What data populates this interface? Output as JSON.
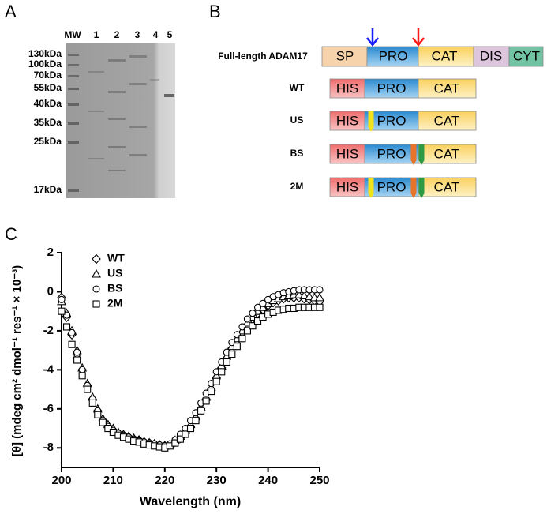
{
  "panel_a": {
    "label": "A",
    "lanes": [
      "MW",
      "1",
      "2",
      "3",
      "4",
      "5"
    ],
    "markers": [
      "130kDa",
      "100kDa",
      "70kDa",
      "55kDa",
      "40kDa",
      "35kDa",
      "25kDa",
      "17kDa"
    ]
  },
  "panel_b": {
    "label": "B",
    "constructs": [
      {
        "name": "Full-length ADAM17",
        "domains": [
          "SP",
          "PRO",
          "CAT",
          "DIS",
          "CYT"
        ]
      },
      {
        "name": "WT",
        "domains": [
          "HIS",
          "PRO",
          "CAT"
        ]
      },
      {
        "name": "US",
        "domains": [
          "HIS",
          "PRO",
          "CAT"
        ]
      },
      {
        "name": "BS",
        "domains": [
          "HIS",
          "PRO",
          "CAT"
        ]
      },
      {
        "name": "2M",
        "domains": [
          "HIS",
          "PRO",
          "CAT"
        ]
      }
    ]
  },
  "chart_data": {
    "type": "scatter",
    "panel_label": "C",
    "x_label": "Wavelength (nm)",
    "y_label": "[θ] (mdeg cm² dmol⁻¹ res⁻¹ × 10⁻³)",
    "xlim": [
      200,
      250
    ],
    "xticks": [
      200,
      210,
      220,
      230,
      240,
      250
    ],
    "ylim": [
      -9,
      2
    ],
    "yticks": [
      2,
      0,
      -2,
      -4,
      -6,
      -8
    ],
    "legend": "upper left",
    "x": [
      200,
      201,
      202,
      203,
      204,
      205,
      206,
      207,
      208,
      209,
      210,
      211,
      212,
      213,
      214,
      215,
      216,
      217,
      218,
      219,
      220,
      221,
      222,
      223,
      224,
      225,
      226,
      227,
      228,
      229,
      230,
      231,
      232,
      233,
      234,
      235,
      236,
      237,
      238,
      239,
      240,
      241,
      242,
      243,
      244,
      245,
      246,
      247,
      248,
      249,
      250
    ],
    "series": [
      {
        "name": "WT",
        "marker": "diamond",
        "color": "#000000",
        "values": [
          -0.3,
          -1.3,
          -2.2,
          -3.2,
          -4.0,
          -4.8,
          -5.5,
          -6.1,
          -6.6,
          -6.9,
          -7.1,
          -7.25,
          -7.35,
          -7.45,
          -7.55,
          -7.6,
          -7.7,
          -7.75,
          -7.8,
          -7.85,
          -7.9,
          -7.85,
          -7.7,
          -7.5,
          -7.2,
          -6.9,
          -6.5,
          -6.0,
          -5.5,
          -5.0,
          -4.4,
          -3.9,
          -3.4,
          -2.9,
          -2.5,
          -2.1,
          -1.7,
          -1.4,
          -1.1,
          -0.9,
          -0.7,
          -0.55,
          -0.45,
          -0.35,
          -0.3,
          -0.3,
          -0.3,
          -0.35,
          -0.4,
          -0.45,
          -0.5
        ]
      },
      {
        "name": "US",
        "marker": "triangle",
        "color": "#000000",
        "values": [
          -0.5,
          -1.1,
          -2.0,
          -3.0,
          -3.9,
          -4.7,
          -5.4,
          -6.0,
          -6.5,
          -6.8,
          -7.0,
          -7.2,
          -7.3,
          -7.4,
          -7.5,
          -7.6,
          -7.7,
          -7.75,
          -7.8,
          -7.85,
          -7.9,
          -7.8,
          -7.6,
          -7.4,
          -7.1,
          -6.8,
          -6.4,
          -5.9,
          -5.4,
          -4.9,
          -4.3,
          -3.8,
          -3.3,
          -2.8,
          -2.4,
          -2.0,
          -1.6,
          -1.3,
          -1.0,
          -0.8,
          -0.6,
          -0.45,
          -0.35,
          -0.25,
          -0.2,
          -0.15,
          -0.15,
          -0.2,
          -0.25,
          -0.3,
          -0.3
        ]
      },
      {
        "name": "BS",
        "marker": "circle",
        "color": "#000000",
        "values": [
          -0.4,
          -1.2,
          -2.1,
          -3.1,
          -4.0,
          -4.8,
          -5.5,
          -6.1,
          -6.6,
          -6.9,
          -7.1,
          -7.25,
          -7.35,
          -7.45,
          -7.55,
          -7.65,
          -7.7,
          -7.75,
          -7.8,
          -7.85,
          -7.9,
          -7.8,
          -7.6,
          -7.3,
          -7.0,
          -6.6,
          -6.2,
          -5.7,
          -5.2,
          -4.7,
          -4.1,
          -3.6,
          -3.1,
          -2.6,
          -2.2,
          -1.8,
          -1.4,
          -1.1,
          -0.8,
          -0.6,
          -0.4,
          -0.25,
          -0.15,
          -0.05,
          0.0,
          0.05,
          0.1,
          0.1,
          0.1,
          0.1,
          0.1
        ]
      },
      {
        "name": "2M",
        "marker": "square",
        "color": "#000000",
        "values": [
          -1.0,
          -1.8,
          -2.7,
          -3.5,
          -4.3,
          -5.0,
          -5.7,
          -6.3,
          -6.7,
          -7.0,
          -7.2,
          -7.35,
          -7.45,
          -7.55,
          -7.65,
          -7.7,
          -7.8,
          -7.85,
          -7.9,
          -7.95,
          -8.0,
          -7.9,
          -7.75,
          -7.55,
          -7.3,
          -7.0,
          -6.6,
          -6.1,
          -5.6,
          -5.1,
          -4.6,
          -4.1,
          -3.6,
          -3.2,
          -2.8,
          -2.4,
          -2.0,
          -1.75,
          -1.5,
          -1.3,
          -1.15,
          -1.05,
          -0.95,
          -0.9,
          -0.85,
          -0.85,
          -0.8,
          -0.8,
          -0.8,
          -0.8,
          -0.8
        ]
      }
    ]
  }
}
